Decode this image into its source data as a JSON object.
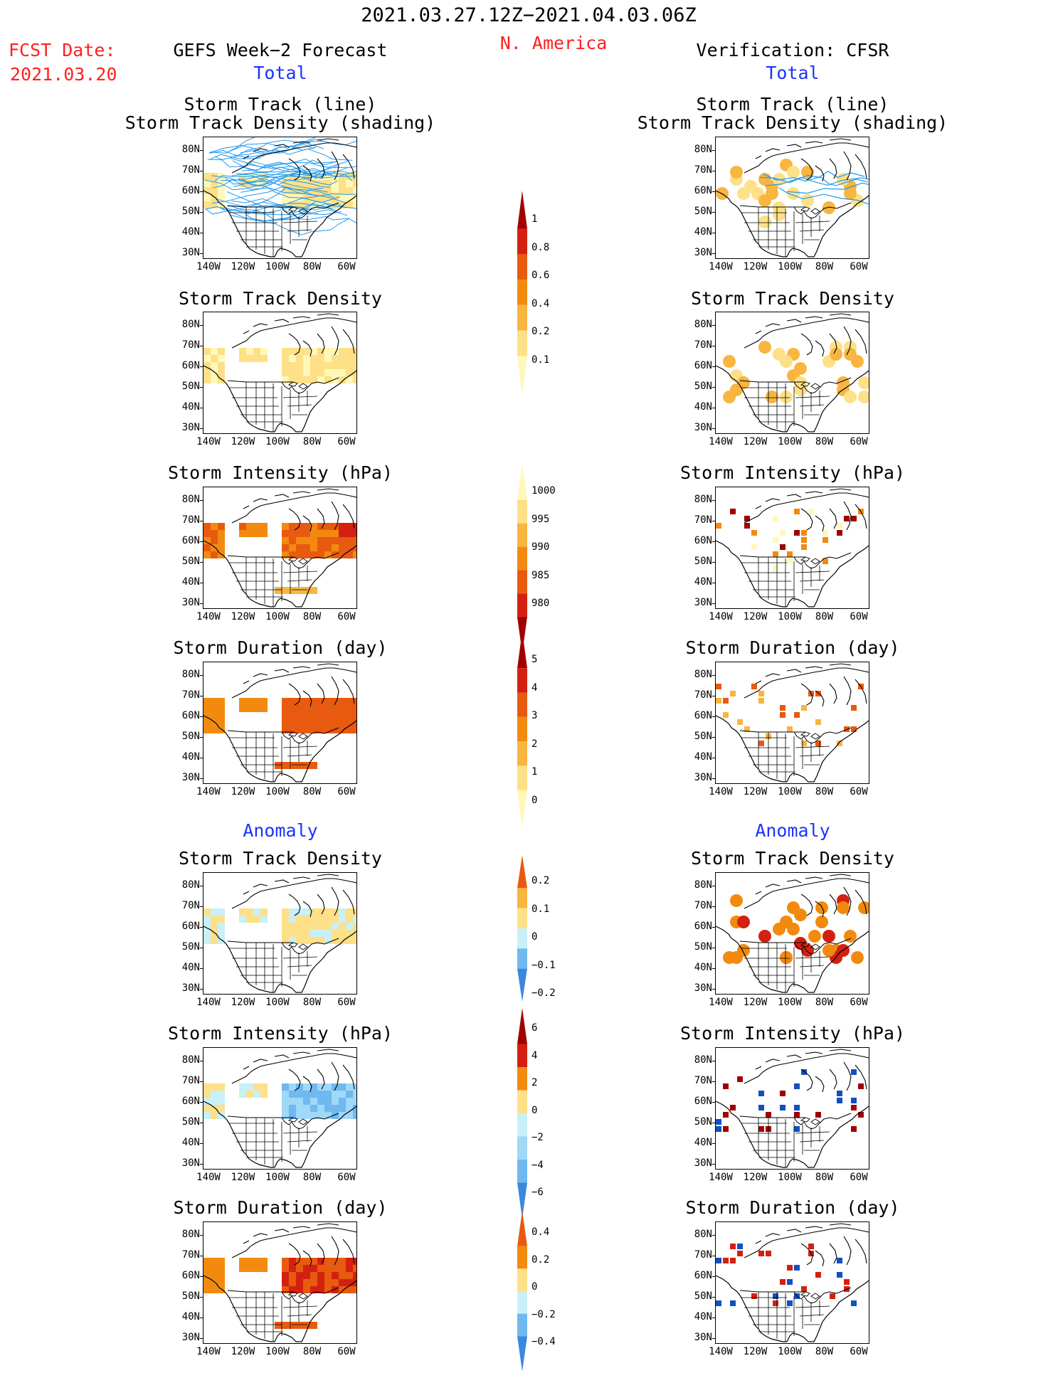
{
  "header": {
    "period": "2021.03.27.12Z−2021.04.03.06Z",
    "region": "N. America",
    "fcst_label": "FCST Date:",
    "fcst_date": "2021.03.20",
    "left_title": "GEFS Week−2 Forecast",
    "right_title": "Verification: CFSR",
    "total_label": "Total",
    "anomaly_label": "Anomaly"
  },
  "panels": {
    "total_track_title_1": "Storm Track (line)",
    "total_track_title_2": "Storm Track Density (shading)",
    "density_title": "Storm Track Density",
    "intensity_title": "Storm Intensity (hPa)",
    "duration_title": "Storm Duration (day)"
  },
  "axes": {
    "y_ticks": [
      "80N",
      "70N",
      "60N",
      "50N",
      "40N",
      "30N"
    ],
    "x_ticks": [
      "140W",
      "120W",
      "100W",
      "80W",
      "60W"
    ]
  },
  "colorbars": {
    "density_total": [
      "1",
      "0.8",
      "0.6",
      "0.4",
      "0.2",
      "0.1"
    ],
    "intensity_total": [
      "1000",
      "995",
      "990",
      "985",
      "980"
    ],
    "duration_total": [
      "5",
      "4",
      "3",
      "2",
      "1",
      "0"
    ],
    "density_anom": [
      "0.2",
      "0.1",
      "0",
      "−0.1",
      "−0.2"
    ],
    "intensity_anom": [
      "6",
      "4",
      "2",
      "0",
      "−2",
      "−4",
      "−6"
    ],
    "duration_anom": [
      "0.4",
      "0.2",
      "0",
      "−0.2",
      "−0.4"
    ]
  },
  "colors": {
    "title_red": "#ff2020",
    "label_blue": "#1a33ff",
    "track_line": "#2299ee",
    "warm": [
      "#fff8b8",
      "#fde087",
      "#f8b540",
      "#f28a10",
      "#e85a10",
      "#d42010",
      "#a00000"
    ],
    "cool": [
      "#c8f0f8",
      "#a0d8f8",
      "#70b8f0",
      "#3a88e0",
      "#1050c0"
    ]
  },
  "chart_data": [
    {
      "type": "heatmap",
      "title": "Storm Track (line) / Storm Track Density (shading)",
      "source": "GEFS Week−2 Forecast",
      "kind": "Total"
    },
    {
      "type": "heatmap",
      "title": "Storm Track (line) / Storm Track Density (shading)",
      "source": "Verification: CFSR",
      "kind": "Total"
    },
    {
      "type": "heatmap",
      "title": "Storm Track Density",
      "source": "GEFS Week−2 Forecast",
      "kind": "Total",
      "colorbar": [
        0.1,
        0.2,
        0.4,
        0.6,
        0.8,
        1
      ]
    },
    {
      "type": "heatmap",
      "title": "Storm Track Density",
      "source": "Verification: CFSR",
      "kind": "Total"
    },
    {
      "type": "heatmap",
      "title": "Storm Intensity (hPa)",
      "source": "GEFS Week−2 Forecast",
      "kind": "Total",
      "colorbar": [
        980,
        985,
        990,
        995,
        1000
      ]
    },
    {
      "type": "heatmap",
      "title": "Storm Intensity (hPa)",
      "source": "Verification: CFSR",
      "kind": "Total"
    },
    {
      "type": "heatmap",
      "title": "Storm Duration (day)",
      "source": "GEFS Week−2 Forecast",
      "kind": "Total",
      "colorbar": [
        0,
        1,
        2,
        3,
        4,
        5
      ]
    },
    {
      "type": "heatmap",
      "title": "Storm Duration (day)",
      "source": "Verification: CFSR",
      "kind": "Total"
    },
    {
      "type": "heatmap",
      "title": "Storm Track Density",
      "source": "GEFS Week−2 Forecast",
      "kind": "Anomaly",
      "colorbar": [
        -0.2,
        -0.1,
        0,
        0.1,
        0.2
      ]
    },
    {
      "type": "heatmap",
      "title": "Storm Track Density",
      "source": "Verification: CFSR",
      "kind": "Anomaly"
    },
    {
      "type": "heatmap",
      "title": "Storm Intensity (hPa)",
      "source": "GEFS Week−2 Forecast",
      "kind": "Anomaly",
      "colorbar": [
        -6,
        -4,
        -2,
        0,
        2,
        4,
        6
      ]
    },
    {
      "type": "heatmap",
      "title": "Storm Intensity (hPa)",
      "source": "Verification: CFSR",
      "kind": "Anomaly"
    },
    {
      "type": "heatmap",
      "title": "Storm Duration (day)",
      "source": "GEFS Week−2 Forecast",
      "kind": "Anomaly",
      "colorbar": [
        -0.4,
        -0.2,
        0,
        0.2,
        0.4
      ]
    },
    {
      "type": "heatmap",
      "title": "Storm Duration (day)",
      "source": "Verification: CFSR",
      "kind": "Anomaly"
    }
  ]
}
